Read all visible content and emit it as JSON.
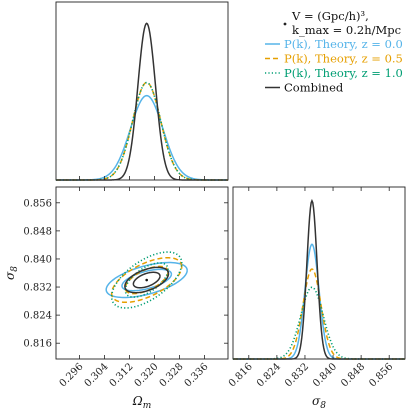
{
  "chart_data": {
    "type": "corner",
    "parameters": [
      "Ωm",
      "σ8"
    ],
    "xlabel_bottom_left": "Ω",
    "xlabel_bottom_left_subscript": "m",
    "xlabel_bottom_right": "σ",
    "xlabel_bottom_right_subscript": "8",
    "ylabel_left": "σ",
    "ylabel_left_subscript": "8",
    "omega_m_ticks": [
      "0.296",
      "0.304",
      "0.312",
      "0.320",
      "0.328",
      "0.336"
    ],
    "omega_m_range": [
      0.2885,
      0.3435
    ],
    "sigma8_ticks": [
      "0.816",
      "0.824",
      "0.832",
      "0.840",
      "0.848",
      "0.856"
    ],
    "sigma8_range": [
      0.8115,
      0.8605
    ],
    "fiducial": {
      "omega_m": 0.3175,
      "sigma8": 0.834
    },
    "legend": {
      "header_line1": "V = (Gpc/h)³,",
      "header_line2": "k_max = 0.2h/Mpc"
    },
    "series": [
      {
        "name": "P(k), Theory, z = 0.0",
        "color": "#56b4e9",
        "style": "solid",
        "sigma_omega_m": 0.0052,
        "sigma_sigma8": 0.002,
        "corr": 0.55
      },
      {
        "name": "P(k), Theory, z = 0.5",
        "color": "#e69f00",
        "style": "dashed",
        "sigma_omega_m": 0.0045,
        "sigma_sigma8": 0.00255,
        "corr": 0.6
      },
      {
        "name": "P(k), Theory, z = 1.0",
        "color": "#009e73",
        "style": "dotted",
        "sigma_omega_m": 0.0045,
        "sigma_sigma8": 0.0032,
        "corr": 0.6
      },
      {
        "name": "Combined",
        "color": "#333333",
        "style": "solid",
        "sigma_omega_m": 0.0028,
        "sigma_sigma8": 0.00145,
        "corr": 0.5
      }
    ]
  }
}
